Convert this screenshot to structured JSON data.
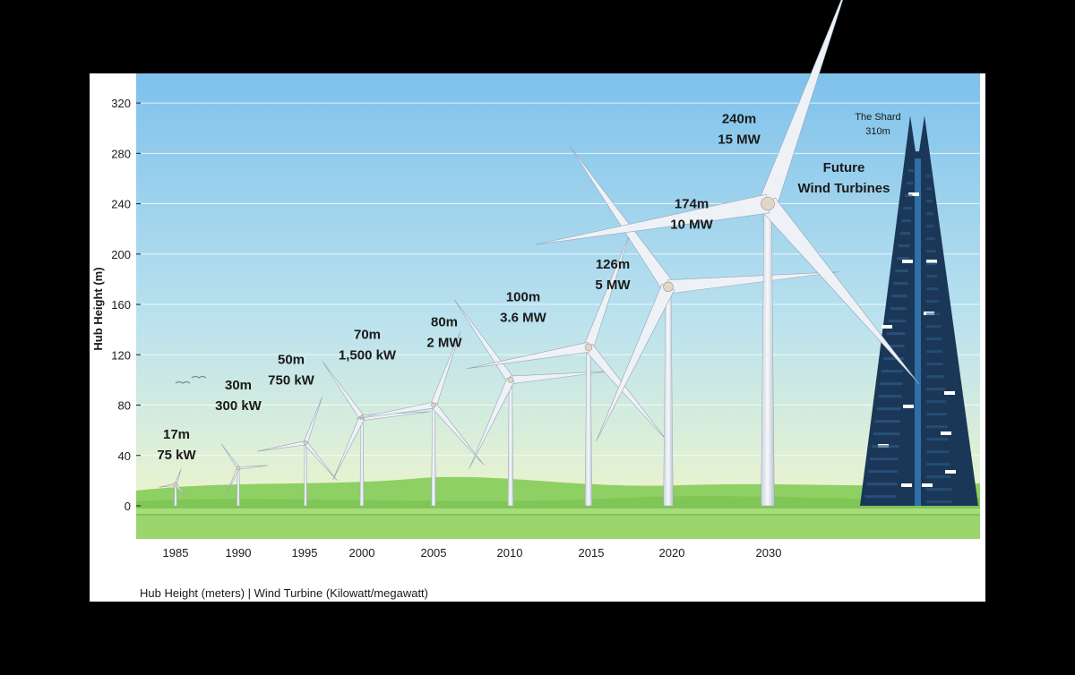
{
  "chart_data": {
    "type": "bar",
    "title": "",
    "ylabel": "Hub Height (m)",
    "caption": "Hub Height (meters) | Wind Turbine (Kilowatt/megawatt)",
    "ylim": [
      0,
      320
    ],
    "yticks": [
      0,
      40,
      80,
      120,
      160,
      200,
      240,
      280,
      320
    ],
    "grid": true,
    "categories": [
      "1985",
      "1990",
      "1995",
      "2000",
      "2005",
      "2010",
      "2015",
      "2020",
      "2030"
    ],
    "values": [
      17,
      30,
      50,
      70,
      80,
      100,
      126,
      174,
      240
    ],
    "height_labels": [
      "17m",
      "30m",
      "50m",
      "70m",
      "80m",
      "100m",
      "126m",
      "174m",
      "240m"
    ],
    "power_labels": [
      "75 kW",
      "300 kW",
      "750 kW",
      "1,500 kW",
      "2 MW",
      "3.6 MW",
      "5 MW",
      "10 MW",
      "15 MW"
    ],
    "annotations": {
      "future_line1": "Future",
      "future_line2": "Wind Turbines",
      "shard_name": "The Shard",
      "shard_height_label": "310m",
      "shard_height": 310
    }
  },
  "colors": {
    "sky_top": "#7ec1ec",
    "sky_bottom": "#f5f8c6",
    "grass": "#88cf5f",
    "turbine": "#e9eef4",
    "shard": "#1b3757"
  }
}
